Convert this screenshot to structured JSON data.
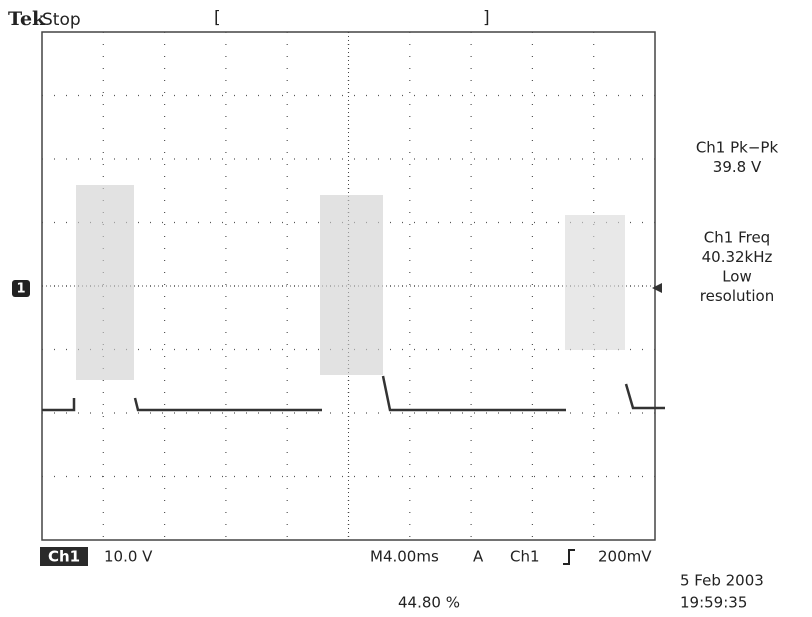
{
  "header": {
    "brand": "Tek",
    "status": "Stop",
    "bracket_open": "[",
    "bracket_close": "]"
  },
  "channel_marker": "1",
  "measurements": [
    [
      "Ch1 Pk−Pk",
      "39.8 V"
    ],
    [
      "Ch1 Freq",
      "40.32kHz",
      "Low",
      "resolution"
    ]
  ],
  "status_bar": {
    "channel": "Ch1",
    "scale": "10.0 V",
    "timebase": "M4.00ms",
    "trigger_mode": "A",
    "trigger_source": "Ch1",
    "trigger_level": "200mV",
    "position": "44.80 %",
    "date": "5 Feb 2003",
    "time": "19:59:35"
  }
}
